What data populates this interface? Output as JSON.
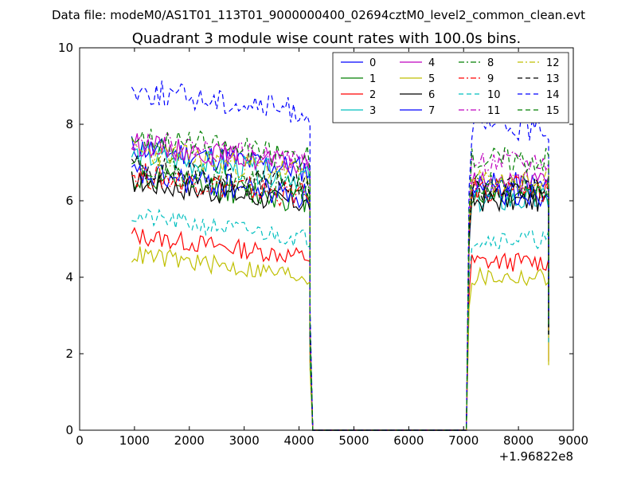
{
  "header": {
    "data_file": "Data file: modeM0/AS1T01_113T01_9000000400_02694cztM0_level2_common_clean.evt"
  },
  "chart_data": {
    "type": "line",
    "title": "Quadrant 3 module wise count rates with 100.0s bins.",
    "xlabel": "",
    "ylabel": "",
    "x_offset_label": "+1.96822e8",
    "xlim": [
      0,
      9000
    ],
    "ylim": [
      0,
      10
    ],
    "x_ticks": [
      0,
      1000,
      2000,
      3000,
      4000,
      5000,
      6000,
      7000,
      8000,
      9000
    ],
    "y_ticks": [
      0,
      2,
      4,
      6,
      8,
      10
    ],
    "grid": false,
    "legend_position": "top-right",
    "segments": {
      "gap_x": [
        4250,
        4350,
        4450,
        4550,
        4650,
        4750,
        4850,
        4950,
        5050,
        5150,
        5250,
        5350,
        5450,
        5550,
        5650,
        5750,
        5850,
        5950,
        6050,
        6150,
        6250,
        6350,
        6450,
        6550,
        6650,
        6750,
        6850,
        6950,
        7050
      ],
      "x_start_1": 950,
      "x_step": 50,
      "n1": 66,
      "x_start_2": 7100,
      "n2": 30
    },
    "series": [
      {
        "name": "0",
        "color": "#0000ff",
        "dash": "solid",
        "level1": 6.8,
        "level2": 6.4,
        "noise": 0.35,
        "seed": 11,
        "end": 2.5
      },
      {
        "name": "1",
        "color": "#007f00",
        "dash": "solid",
        "level1": 6.0,
        "level2": 6.2,
        "noise": 0.35,
        "seed": 12,
        "end": 2.6
      },
      {
        "name": "2",
        "color": "#ff0000",
        "dash": "solid",
        "level1": 4.5,
        "level2": 4.4,
        "noise": 0.25,
        "seed": 13,
        "end": 1.8
      },
      {
        "name": "3",
        "color": "#00bfbf",
        "dash": "solid",
        "level1": 6.6,
        "level2": 6.0,
        "noise": 0.35,
        "seed": 14,
        "end": 2.4
      },
      {
        "name": "4",
        "color": "#bf00bf",
        "dash": "solid",
        "level1": 6.9,
        "level2": 6.5,
        "noise": 0.3,
        "seed": 15,
        "end": 2.6
      },
      {
        "name": "5",
        "color": "#bfbf00",
        "dash": "solid",
        "level1": 4.0,
        "level2": 4.0,
        "noise": 0.25,
        "seed": 16,
        "end": 1.7
      },
      {
        "name": "6",
        "color": "#000000",
        "dash": "solid",
        "level1": 5.9,
        "level2": 6.0,
        "noise": 0.3,
        "seed": 17,
        "end": 2.5
      },
      {
        "name": "7",
        "color": "#0000ff",
        "dash": "solid",
        "level1": 6.1,
        "level2": 6.2,
        "noise": 0.35,
        "seed": 18,
        "end": 2.6
      },
      {
        "name": "8",
        "color": "#007f00",
        "dash": "dashdot",
        "level1": 6.3,
        "level2": 6.4,
        "noise": 0.35,
        "seed": 19,
        "end": 2.7
      },
      {
        "name": "9",
        "color": "#ff0000",
        "dash": "dashdot",
        "level1": 6.1,
        "level2": 6.3,
        "noise": 0.35,
        "seed": 20,
        "end": 2.6
      },
      {
        "name": "10",
        "color": "#00bfbf",
        "dash": "dashed",
        "level1": 5.0,
        "level2": 5.0,
        "noise": 0.25,
        "seed": 21,
        "end": 2.3
      },
      {
        "name": "11",
        "color": "#bf00bf",
        "dash": "dashdot",
        "level1": 7.0,
        "level2": 7.0,
        "noise": 0.3,
        "seed": 22,
        "end": 2.7
      },
      {
        "name": "12",
        "color": "#bfbf00",
        "dash": "dashdot",
        "level1": 6.7,
        "level2": 6.5,
        "noise": 0.35,
        "seed": 23,
        "end": 2.6
      },
      {
        "name": "13",
        "color": "#000000",
        "dash": "dashed",
        "level1": 6.3,
        "level2": 6.3,
        "noise": 0.35,
        "seed": 24,
        "end": 2.5
      },
      {
        "name": "14",
        "color": "#0000ff",
        "dash": "dashed",
        "level1": 8.3,
        "level2": 7.9,
        "noise": 0.35,
        "seed": 25,
        "end": 2.9
      },
      {
        "name": "15",
        "color": "#007f00",
        "dash": "dashed",
        "level1": 7.1,
        "level2": 7.1,
        "noise": 0.35,
        "seed": 26,
        "end": 2.7
      }
    ]
  }
}
